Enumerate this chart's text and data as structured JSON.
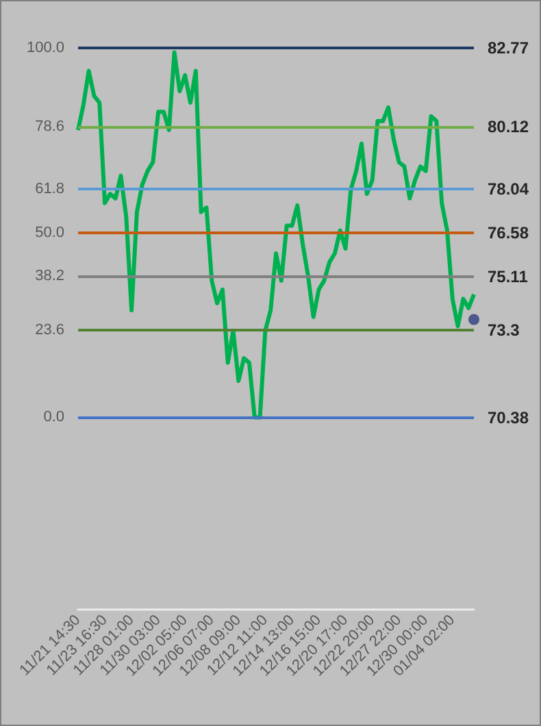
{
  "chart_data": {
    "type": "line",
    "categories": [
      "11/21 14:30",
      null,
      null,
      null,
      null,
      "11/23 16:30",
      null,
      null,
      null,
      null,
      "11/28 01:00",
      null,
      null,
      null,
      null,
      "11/30 03:00",
      null,
      null,
      null,
      null,
      "12/02 05:00",
      null,
      null,
      null,
      null,
      "12/06 07:00",
      null,
      null,
      null,
      null,
      "12/08 09:00",
      null,
      null,
      null,
      null,
      "12/12 11:00",
      null,
      null,
      null,
      null,
      "12/14 13:00",
      null,
      null,
      null,
      null,
      "12/16 15:00",
      null,
      null,
      null,
      null,
      "12/20 17:00",
      null,
      null,
      null,
      null,
      "12/22 20:00",
      null,
      null,
      null,
      null,
      "12/27 22:00",
      null,
      null,
      null,
      null,
      "12/30 00:00",
      null,
      null,
      null,
      null,
      "01/04 02:00",
      null,
      null,
      null,
      null
    ],
    "series": [
      {
        "color": "#00b050",
        "values": [
          77.8,
          84.6,
          93.8,
          87.0,
          85.2,
          58.0,
          60.5,
          59.3,
          65.4,
          54.3,
          29.0,
          55.6,
          63.0,
          66.7,
          69.1,
          82.7,
          82.7,
          77.8,
          98.8,
          88.3,
          92.6,
          85.2,
          93.8,
          55.6,
          56.8,
          37.0,
          30.9,
          34.6,
          14.8,
          23.5,
          9.9,
          16.0,
          14.8,
          0.0,
          0.0,
          23.5,
          29.0,
          44.4,
          37.0,
          51.9,
          51.9,
          57.4,
          46.9,
          38.3,
          27.2,
          34.6,
          37.0,
          42.0,
          44.4,
          50.6,
          45.7,
          61.7,
          66.7,
          74.1,
          60.5,
          64.2,
          80.2,
          80.2,
          83.9,
          75.3,
          69.1,
          67.9,
          59.3,
          64.2,
          67.9,
          66.7,
          81.5,
          80.2,
          58.0,
          50.6,
          32.1,
          24.7,
          32.1,
          29.6,
          33.3
        ]
      },
      {
        "type": "scatter",
        "marker": "circle",
        "color": "#2f3f7f",
        "values": [
          null,
          null,
          null,
          null,
          null,
          null,
          null,
          null,
          null,
          null,
          null,
          null,
          null,
          null,
          null,
          null,
          null,
          null,
          null,
          null,
          null,
          null,
          null,
          null,
          null,
          null,
          null,
          null,
          null,
          null,
          null,
          null,
          null,
          null,
          null,
          null,
          null,
          null,
          null,
          null,
          null,
          null,
          null,
          null,
          null,
          null,
          null,
          null,
          null,
          null,
          null,
          null,
          null,
          null,
          null,
          null,
          null,
          null,
          null,
          null,
          null,
          null,
          null,
          null,
          null,
          null,
          null,
          null,
          null,
          null,
          null,
          null,
          null,
          null,
          26.5
        ]
      }
    ],
    "ylim": [
      -52,
      100
    ],
    "yticks": [
      {
        "value": 0,
        "label": "0.0"
      },
      23.6,
      38.2,
      {
        "value": 50,
        "label": "50.0"
      },
      61.8,
      78.6,
      {
        "value": 100,
        "label": "100.0"
      }
    ],
    "y2lim": [
      63.94,
      82.77
    ],
    "y2ticks": [
      70.38,
      73.3,
      75.11,
      76.58,
      78.04,
      80.12,
      82.77
    ],
    "ref_lines": [
      {
        "axis": "y",
        "value": 100,
        "color": "#1f3864"
      },
      {
        "axis": "y",
        "value": 78.6,
        "color": "#70ad47"
      },
      {
        "axis": "y",
        "value": 61.8,
        "color": "#5b9bd5"
      },
      {
        "axis": "y",
        "value": 50,
        "color": "#c55a11"
      },
      {
        "axis": "y",
        "value": 38.2,
        "color": "#808080"
      },
      {
        "axis": "y",
        "value": 23.6,
        "color": "#548235"
      },
      {
        "axis": "y",
        "value": 0,
        "color": "#4472c4"
      }
    ],
    "marker": "none",
    "grid": false
  }
}
